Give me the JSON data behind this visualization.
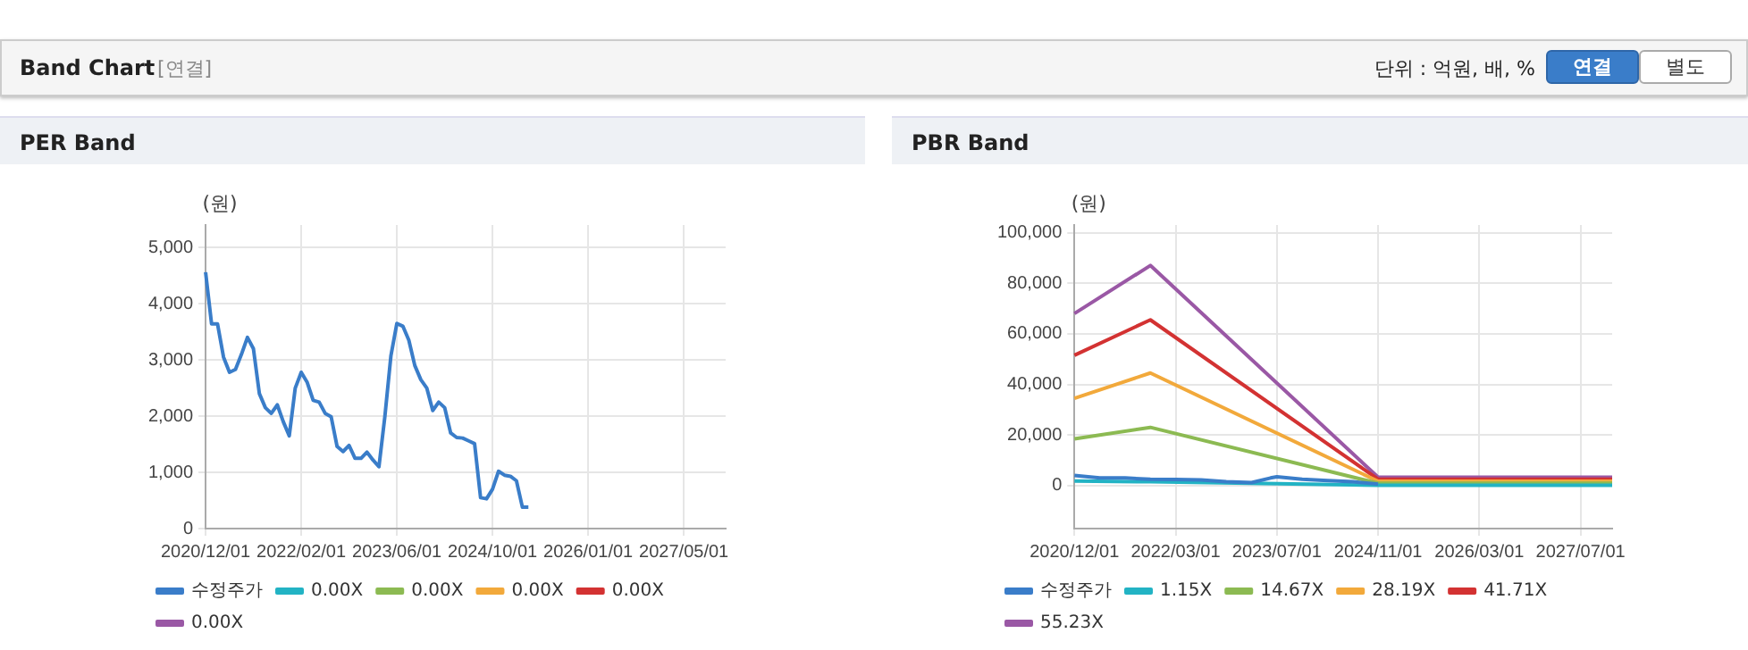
{
  "chart_data": [
    {
      "type": "other",
      "title": "Band Chart",
      "annotations": [
        "[연결]",
        "단위 : 억원, 배, %",
        "연결",
        "별도"
      ]
    },
    {
      "type": "line",
      "title": "PER Band",
      "ylabel": "(원)",
      "grid": true,
      "legend": "bottom",
      "marker": "none",
      "line_style": "solid",
      "ylim": [
        0,
        5400
      ],
      "yticks": [
        0,
        {
          "value": 1000,
          "label": "1,000"
        },
        {
          "value": 2000,
          "label": "2,000"
        },
        {
          "value": 3000,
          "label": "3,000"
        },
        {
          "value": 4000,
          "label": "4,000"
        },
        {
          "value": 5000,
          "label": "5,000"
        }
      ],
      "categories": [
        "2020/12/01",
        null,
        null,
        null,
        null,
        null,
        null,
        null,
        null,
        null,
        null,
        null,
        null,
        null,
        null,
        null,
        "2022/02/01",
        null,
        null,
        null,
        null,
        null,
        null,
        null,
        null,
        null,
        null,
        null,
        null,
        null,
        null,
        null,
        "2023/06/01",
        null,
        null,
        null,
        null,
        null,
        null,
        null,
        null,
        null,
        null,
        null,
        null,
        null,
        null,
        null,
        "2024/10/01",
        null,
        null,
        null,
        null,
        null,
        null,
        null,
        null,
        null,
        null,
        null,
        null,
        null,
        null,
        null,
        "2026/01/01",
        null,
        null,
        null,
        null,
        null,
        null,
        null,
        null,
        null,
        null,
        null,
        null,
        null,
        null,
        null,
        "2027/05/01",
        null,
        null,
        null,
        null,
        null,
        null,
        null
      ],
      "series": [
        {
          "name": "수정주가",
          "color": "#3a7dc9",
          "values": [
            4560,
            3640,
            3640,
            3050,
            2780,
            2830,
            3100,
            3400,
            3200,
            2400,
            2150,
            2050,
            2200,
            1900,
            1650,
            2500,
            2780,
            2600,
            2280,
            2250,
            2050,
            1990,
            1460,
            1370,
            1480,
            1250,
            1250,
            1360,
            1220,
            1100,
            2000,
            3070,
            3650,
            3600,
            3350,
            2900,
            2650,
            2500,
            2100,
            2250,
            2150,
            1700,
            1620,
            1610,
            1560,
            1510,
            550,
            530,
            700,
            1020,
            950,
            930,
            850,
            380,
            380,
            null,
            null,
            null,
            null,
            null,
            null,
            null,
            null,
            null,
            null,
            null,
            null,
            null,
            null,
            null,
            null,
            null,
            null,
            null,
            null,
            null,
            null,
            null,
            null,
            null,
            null,
            null,
            null,
            null,
            null,
            null,
            null,
            null
          ]
        },
        {
          "name": "0.00X",
          "color": "#22b3c4",
          "values": [
            null,
            null,
            null,
            null,
            null,
            null,
            null,
            null,
            null,
            null,
            null,
            null,
            null,
            null,
            null,
            null,
            null,
            null,
            null,
            null,
            null,
            null,
            null,
            null,
            null,
            null,
            null,
            null,
            null,
            null,
            null,
            null,
            null,
            null,
            null,
            null,
            null,
            null,
            null,
            null,
            null,
            null,
            null,
            null,
            null,
            null,
            null,
            null,
            null,
            null,
            null,
            null,
            null,
            null,
            null,
            null,
            null,
            null,
            null,
            null,
            null,
            null,
            null,
            null,
            null,
            null,
            null,
            null,
            null,
            null,
            null,
            null,
            null,
            null,
            null,
            null,
            null,
            null,
            null,
            null,
            null,
            null,
            null,
            null,
            null,
            null,
            null,
            null
          ]
        },
        {
          "name": "0.00X",
          "color": "#8cba52",
          "values": [
            null,
            null,
            null,
            null,
            null,
            null,
            null,
            null,
            null,
            null,
            null,
            null,
            null,
            null,
            null,
            null,
            null,
            null,
            null,
            null,
            null,
            null,
            null,
            null,
            null,
            null,
            null,
            null,
            null,
            null,
            null,
            null,
            null,
            null,
            null,
            null,
            null,
            null,
            null,
            null,
            null,
            null,
            null,
            null,
            null,
            null,
            null,
            null,
            null,
            null,
            null,
            null,
            null,
            null,
            null,
            null,
            null,
            null,
            null,
            null,
            null,
            null,
            null,
            null,
            null,
            null,
            null,
            null,
            null,
            null,
            null,
            null,
            null,
            null,
            null,
            null,
            null,
            null,
            null,
            null,
            null,
            null,
            null,
            null,
            null,
            null,
            null,
            null
          ]
        },
        {
          "name": "0.00X",
          "color": "#f2a93b",
          "values": [
            null,
            null,
            null,
            null,
            null,
            null,
            null,
            null,
            null,
            null,
            null,
            null,
            null,
            null,
            null,
            null,
            null,
            null,
            null,
            null,
            null,
            null,
            null,
            null,
            null,
            null,
            null,
            null,
            null,
            null,
            null,
            null,
            null,
            null,
            null,
            null,
            null,
            null,
            null,
            null,
            null,
            null,
            null,
            null,
            null,
            null,
            null,
            null,
            null,
            null,
            null,
            null,
            null,
            null,
            null,
            null,
            null,
            null,
            null,
            null,
            null,
            null,
            null,
            null,
            null,
            null,
            null,
            null,
            null,
            null,
            null,
            null,
            null,
            null,
            null,
            null,
            null,
            null,
            null,
            null,
            null,
            null,
            null,
            null,
            null,
            null,
            null,
            null
          ]
        },
        {
          "name": "0.00X",
          "color": "#d33232",
          "values": [
            null,
            null,
            null,
            null,
            null,
            null,
            null,
            null,
            null,
            null,
            null,
            null,
            null,
            null,
            null,
            null,
            null,
            null,
            null,
            null,
            null,
            null,
            null,
            null,
            null,
            null,
            null,
            null,
            null,
            null,
            null,
            null,
            null,
            null,
            null,
            null,
            null,
            null,
            null,
            null,
            null,
            null,
            null,
            null,
            null,
            null,
            null,
            null,
            null,
            null,
            null,
            null,
            null,
            null,
            null,
            null,
            null,
            null,
            null,
            null,
            null,
            null,
            null,
            null,
            null,
            null,
            null,
            null,
            null,
            null,
            null,
            null,
            null,
            null,
            null,
            null,
            null,
            null,
            null,
            null,
            null,
            null,
            null,
            null,
            null,
            null,
            null,
            null
          ]
        },
        {
          "name": "0.00X",
          "color": "#9a58a5",
          "values": [
            null,
            null,
            null,
            null,
            null,
            null,
            null,
            null,
            null,
            null,
            null,
            null,
            null,
            null,
            null,
            null,
            null,
            null,
            null,
            null,
            null,
            null,
            null,
            null,
            null,
            null,
            null,
            null,
            null,
            null,
            null,
            null,
            null,
            null,
            null,
            null,
            null,
            null,
            null,
            null,
            null,
            null,
            null,
            null,
            null,
            null,
            null,
            null,
            null,
            null,
            null,
            null,
            null,
            null,
            null,
            null,
            null,
            null,
            null,
            null,
            null,
            null,
            null,
            null,
            null,
            null,
            null,
            null,
            null,
            null,
            null,
            null,
            null,
            null,
            null,
            null,
            null,
            null,
            null,
            null,
            null,
            null,
            null,
            null,
            null,
            null,
            null,
            null
          ]
        }
      ]
    },
    {
      "type": "line",
      "title": "PBR Band",
      "ylabel": "(원)",
      "grid": true,
      "legend": "bottom",
      "marker": "none",
      "line_style": "solid",
      "ylim": [
        -17000,
        103000
      ],
      "yticks": [
        0,
        {
          "value": 20000,
          "label": "20,000"
        },
        {
          "value": 40000,
          "label": "40,000"
        },
        {
          "value": 60000,
          "label": "60,000"
        },
        {
          "value": 80000,
          "label": "80,000"
        },
        {
          "value": 100000,
          "label": "100,000"
        }
      ],
      "categories": [
        "2020/12/01",
        null,
        null,
        null,
        null,
        null,
        null,
        null,
        null,
        null,
        null,
        null,
        null,
        null,
        null,
        null,
        "2022/03/01",
        null,
        null,
        null,
        null,
        null,
        null,
        null,
        null,
        null,
        null,
        null,
        null,
        null,
        null,
        null,
        "2023/07/01",
        null,
        null,
        null,
        null,
        null,
        null,
        null,
        null,
        null,
        null,
        null,
        null,
        null,
        null,
        null,
        "2024/11/01",
        null,
        null,
        null,
        null,
        null,
        null,
        null,
        null,
        null,
        null,
        null,
        null,
        null,
        null,
        null,
        "2026/03/01",
        null,
        null,
        null,
        null,
        null,
        null,
        null,
        null,
        null,
        null,
        null,
        null,
        null,
        null,
        null,
        "2027/07/01",
        null,
        null,
        null,
        null,
        null
      ],
      "series": [
        {
          "name": "수정주가",
          "color": "#3a7dc9",
          "values": [
            4000,
            null,
            null,
            null,
            3000,
            null,
            null,
            null,
            3000,
            null,
            null,
            null,
            2500,
            null,
            null,
            null,
            2400,
            null,
            null,
            null,
            2200,
            null,
            null,
            null,
            1500,
            null,
            null,
            null,
            1200,
            null,
            null,
            3000,
            3500,
            null,
            null,
            null,
            2500,
            null,
            null,
            null,
            2000,
            null,
            null,
            null,
            1500,
            null,
            null,
            null,
            600,
            null,
            null,
            null,
            null,
            null,
            null,
            null,
            null,
            null,
            null,
            null,
            null,
            null,
            null,
            null,
            null,
            null,
            null,
            null,
            null,
            null,
            null,
            null,
            null,
            null,
            null,
            null,
            null,
            null,
            null,
            null,
            null,
            null,
            null,
            null,
            null,
            null
          ]
        },
        {
          "name": "1.15X",
          "color": "#22b3c4",
          "values": [
            1800,
            null,
            null,
            null,
            null,
            null,
            null,
            null,
            null,
            null,
            null,
            null,
            1500,
            null,
            null,
            null,
            null,
            null,
            null,
            null,
            null,
            null,
            null,
            null,
            null,
            null,
            null,
            null,
            null,
            null,
            null,
            null,
            null,
            null,
            null,
            null,
            null,
            null,
            null,
            null,
            null,
            null,
            null,
            null,
            null,
            null,
            null,
            null,
            100,
            null,
            null,
            null,
            null,
            null,
            null,
            null,
            null,
            null,
            null,
            null,
            null,
            null,
            null,
            null,
            null,
            null,
            null,
            null,
            null,
            null,
            null,
            null,
            null,
            null,
            null,
            null,
            null,
            null,
            null,
            null,
            null,
            null,
            null,
            null,
            null,
            100
          ]
        },
        {
          "name": "14.67X",
          "color": "#8cba52",
          "values": [
            18500,
            null,
            null,
            null,
            null,
            null,
            null,
            null,
            null,
            null,
            null,
            null,
            23000,
            null,
            null,
            null,
            null,
            null,
            null,
            null,
            null,
            null,
            null,
            null,
            null,
            null,
            null,
            null,
            null,
            null,
            null,
            null,
            null,
            null,
            null,
            null,
            null,
            null,
            null,
            null,
            null,
            null,
            null,
            null,
            null,
            null,
            null,
            null,
            900,
            null,
            null,
            null,
            null,
            null,
            null,
            null,
            null,
            null,
            null,
            null,
            null,
            null,
            null,
            null,
            null,
            null,
            null,
            null,
            null,
            null,
            null,
            null,
            null,
            null,
            null,
            null,
            null,
            null,
            null,
            null,
            null,
            null,
            null,
            null,
            null,
            900
          ]
        },
        {
          "name": "28.19X",
          "color": "#f2a93b",
          "values": [
            34500,
            null,
            null,
            null,
            null,
            null,
            null,
            null,
            null,
            null,
            null,
            null,
            44500,
            null,
            null,
            null,
            null,
            null,
            null,
            null,
            null,
            null,
            null,
            null,
            null,
            null,
            null,
            null,
            null,
            null,
            null,
            null,
            null,
            null,
            null,
            null,
            null,
            null,
            null,
            null,
            null,
            null,
            null,
            null,
            null,
            null,
            null,
            null,
            1700,
            null,
            null,
            null,
            null,
            null,
            null,
            null,
            null,
            null,
            null,
            null,
            null,
            null,
            null,
            null,
            null,
            null,
            null,
            null,
            null,
            null,
            null,
            null,
            null,
            null,
            null,
            null,
            null,
            null,
            null,
            null,
            null,
            null,
            null,
            null,
            null,
            1700
          ]
        },
        {
          "name": "41.71X",
          "color": "#d33232",
          "values": [
            51500,
            null,
            null,
            null,
            null,
            null,
            null,
            null,
            null,
            null,
            null,
            null,
            65500,
            null,
            null,
            null,
            null,
            null,
            null,
            null,
            null,
            null,
            null,
            null,
            null,
            null,
            null,
            null,
            null,
            null,
            null,
            null,
            null,
            null,
            null,
            null,
            null,
            null,
            null,
            null,
            null,
            null,
            null,
            null,
            null,
            null,
            null,
            null,
            2500,
            null,
            null,
            null,
            null,
            null,
            null,
            null,
            null,
            null,
            null,
            null,
            null,
            null,
            null,
            null,
            null,
            null,
            null,
            null,
            null,
            null,
            null,
            null,
            null,
            null,
            null,
            null,
            null,
            null,
            null,
            null,
            null,
            null,
            null,
            null,
            null,
            2500
          ]
        },
        {
          "name": "55.23X",
          "color": "#9a58a5",
          "values": [
            68000,
            null,
            null,
            null,
            null,
            null,
            null,
            null,
            null,
            null,
            null,
            null,
            87000,
            null,
            null,
            null,
            null,
            null,
            null,
            null,
            null,
            null,
            null,
            null,
            null,
            null,
            null,
            null,
            null,
            null,
            null,
            null,
            null,
            null,
            null,
            null,
            null,
            null,
            null,
            null,
            null,
            null,
            null,
            null,
            null,
            null,
            null,
            null,
            3300,
            null,
            null,
            null,
            null,
            null,
            null,
            null,
            null,
            null,
            null,
            null,
            null,
            null,
            null,
            null,
            null,
            null,
            null,
            null,
            null,
            null,
            null,
            null,
            null,
            null,
            null,
            null,
            null,
            null,
            null,
            null,
            null,
            null,
            null,
            null,
            null,
            3300
          ]
        }
      ]
    }
  ]
}
